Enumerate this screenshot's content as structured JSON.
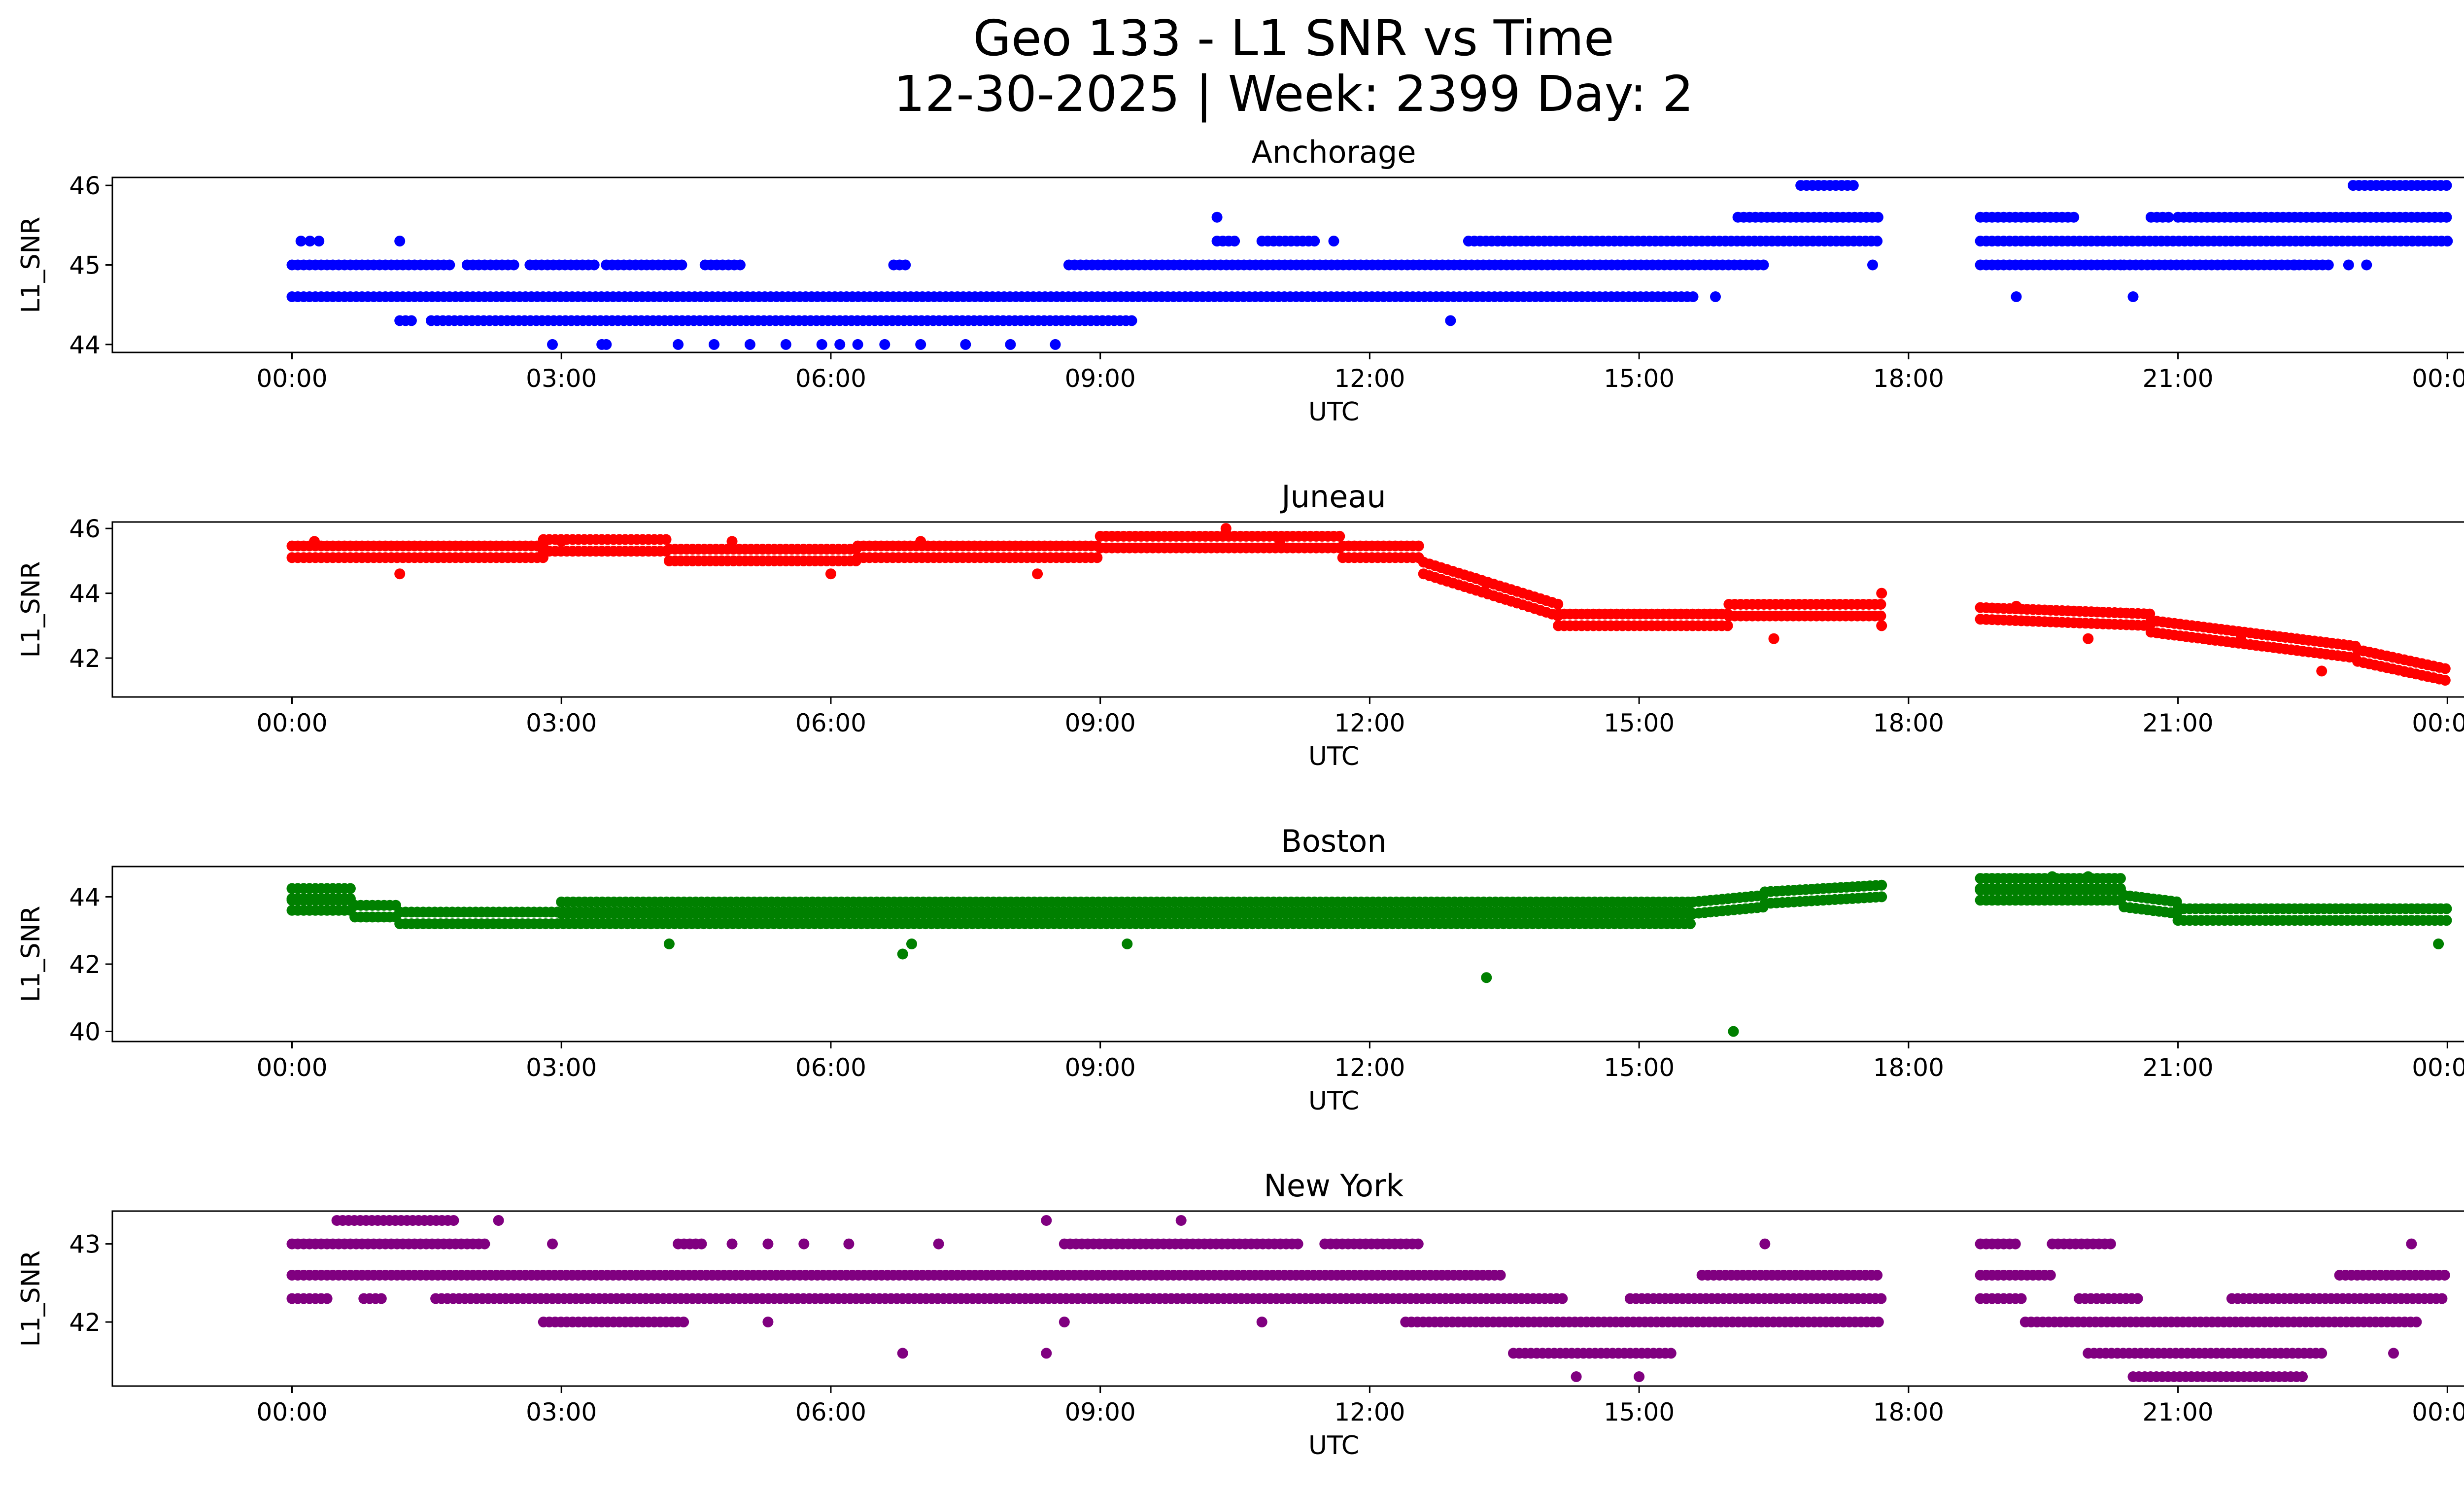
{
  "figure": {
    "title_line1": "Geo 133 - L1 SNR vs Time",
    "title_line2": "12-30-2025 | Week: 2399 Day: 2"
  },
  "chart_data": [
    {
      "type": "scatter",
      "title": "Anchorage",
      "xlabel": "UTC",
      "ylabel": "L1_SNR",
      "color": "#0000ff",
      "xlim_hours": [
        -2.0,
        25.2
      ],
      "ylim": [
        43.9,
        46.1
      ],
      "xticks": [
        "00:00",
        "03:00",
        "06:00",
        "09:00",
        "12:00",
        "15:00",
        "18:00",
        "21:00",
        "00:00"
      ],
      "yticks": [
        44,
        45,
        46
      ],
      "bands": [
        {
          "y": 44.6,
          "ranges": [
            [
              0.0,
              15.6
            ]
          ]
        },
        {
          "y": 45.0,
          "ranges": [
            [
              0.0,
              1.8
            ],
            [
              1.95,
              2.5
            ],
            [
              2.65,
              3.4
            ],
            [
              3.5,
              3.9
            ],
            [
              3.95,
              4.35
            ],
            [
              4.6,
              5.05
            ],
            [
              6.7,
              6.85
            ],
            [
              8.65,
              16.4
            ],
            [
              18.8,
              20.4
            ],
            [
              20.4,
              22.7
            ]
          ]
        },
        {
          "y": 44.3,
          "ranges": [
            [
              1.2,
              1.35
            ],
            [
              1.55,
              9.4
            ]
          ]
        },
        {
          "y": 45.3,
          "ranges": [
            [
              10.3,
              10.55
            ],
            [
              10.8,
              11.4
            ],
            [
              13.1,
              17.7
            ],
            [
              18.8,
              24.0
            ]
          ]
        },
        {
          "y": 45.6,
          "ranges": [
            [
              16.1,
              17.7
            ],
            [
              18.8,
              19.9
            ],
            [
              20.7,
              20.95
            ],
            [
              21.0,
              24.0
            ]
          ]
        },
        {
          "y": 46.0,
          "ranges": [
            [
              16.8,
              17.4
            ],
            [
              22.95,
              24.0
            ]
          ]
        }
      ],
      "points": [
        [
          0.1,
          45.3
        ],
        [
          0.2,
          45.3
        ],
        [
          0.3,
          45.3
        ],
        [
          1.2,
          45.3
        ],
        [
          2.9,
          44.0
        ],
        [
          3.45,
          44.0
        ],
        [
          3.5,
          44.0
        ],
        [
          4.3,
          44.0
        ],
        [
          4.7,
          44.0
        ],
        [
          5.1,
          44.0
        ],
        [
          5.5,
          44.0
        ],
        [
          5.9,
          44.0
        ],
        [
          6.1,
          44.0
        ],
        [
          6.3,
          44.0
        ],
        [
          6.6,
          44.0
        ],
        [
          7.0,
          44.0
        ],
        [
          7.5,
          44.0
        ],
        [
          8.0,
          44.0
        ],
        [
          8.5,
          44.0
        ],
        [
          10.3,
          45.6
        ],
        [
          11.6,
          45.3
        ],
        [
          12.9,
          44.3
        ],
        [
          15.85,
          44.6
        ],
        [
          17.6,
          45.0
        ],
        [
          19.2,
          44.6
        ],
        [
          20.5,
          44.6
        ],
        [
          22.3,
          45.0
        ],
        [
          22.9,
          45.0
        ],
        [
          23.1,
          45.0
        ]
      ]
    },
    {
      "type": "scatter",
      "title": "Juneau",
      "xlabel": "UTC",
      "ylabel": "L1_SNR",
      "color": "#ff0000",
      "xlim_hours": [
        -2.0,
        25.2
      ],
      "ylim": [
        40.8,
        46.2
      ],
      "xticks": [
        "00:00",
        "03:00",
        "06:00",
        "09:00",
        "12:00",
        "15:00",
        "18:00",
        "21:00",
        "00:00"
      ],
      "yticks": [
        42,
        44,
        46
      ],
      "segments": [
        {
          "x": [
            0.0,
            2.8
          ],
          "y": [
            45.1,
            45.1
          ]
        },
        {
          "x": [
            2.8,
            4.2
          ],
          "y": [
            45.3,
            45.3
          ]
        },
        {
          "x": [
            4.2,
            6.3
          ],
          "y": [
            45.0,
            45.0
          ]
        },
        {
          "x": [
            6.3,
            9.0
          ],
          "y": [
            45.1,
            45.1
          ]
        },
        {
          "x": [
            9.0,
            11.7
          ],
          "y": [
            45.4,
            45.4
          ]
        },
        {
          "x": [
            11.7,
            12.6
          ],
          "y": [
            45.1,
            45.1
          ]
        },
        {
          "x": [
            12.6,
            14.1
          ],
          "y": [
            44.6,
            43.3
          ]
        },
        {
          "x": [
            14.1,
            16.0
          ],
          "y": [
            43.0,
            43.0
          ]
        },
        {
          "x": [
            16.0,
            17.7
          ],
          "y": [
            43.3,
            43.3
          ]
        },
        {
          "x": [
            18.8,
            20.7
          ],
          "y": [
            43.2,
            43.0
          ]
        },
        {
          "x": [
            20.7,
            23.0
          ],
          "y": [
            42.8,
            42.0
          ]
        },
        {
          "x": [
            23.0,
            24.0
          ],
          "y": [
            41.9,
            41.3
          ]
        }
      ],
      "points": [
        [
          0.25,
          45.6
        ],
        [
          1.2,
          44.6
        ],
        [
          3.0,
          45.6
        ],
        [
          4.9,
          45.6
        ],
        [
          6.0,
          44.6
        ],
        [
          7.0,
          45.6
        ],
        [
          8.3,
          44.6
        ],
        [
          10.4,
          46.0
        ],
        [
          11.0,
          45.6
        ],
        [
          13.3,
          44.3
        ],
        [
          16.5,
          42.6
        ],
        [
          17.7,
          44.0
        ],
        [
          17.7,
          43.0
        ],
        [
          19.2,
          43.6
        ],
        [
          20.0,
          42.6
        ],
        [
          21.7,
          42.6
        ],
        [
          22.6,
          41.6
        ]
      ]
    },
    {
      "type": "scatter",
      "title": "Boston",
      "xlabel": "UTC",
      "ylabel": "L1_SNR",
      "color": "#008000",
      "xlim_hours": [
        -2.0,
        25.2
      ],
      "ylim": [
        39.7,
        44.9
      ],
      "xticks": [
        "00:00",
        "03:00",
        "06:00",
        "09:00",
        "12:00",
        "15:00",
        "18:00",
        "21:00",
        "00:00"
      ],
      "yticks": [
        40,
        42,
        44
      ],
      "segments": [
        {
          "x": [
            0.0,
            0.7
          ],
          "y": [
            43.9,
            43.9
          ]
        },
        {
          "x": [
            0.0,
            0.7
          ],
          "y": [
            43.6,
            43.6
          ]
        },
        {
          "x": [
            0.7,
            1.2
          ],
          "y": [
            43.4,
            43.4
          ]
        },
        {
          "x": [
            1.2,
            4.0
          ],
          "y": [
            43.2,
            43.2
          ]
        },
        {
          "x": [
            3.0,
            15.6
          ],
          "y": [
            43.5,
            43.5
          ]
        },
        {
          "x": [
            4.0,
            15.6
          ],
          "y": [
            43.2,
            43.2
          ]
        },
        {
          "x": [
            15.6,
            16.4
          ],
          "y": [
            43.5,
            43.7
          ]
        },
        {
          "x": [
            16.4,
            17.7
          ],
          "y": [
            43.8,
            44.0
          ]
        },
        {
          "x": [
            18.8,
            20.4
          ],
          "y": [
            44.2,
            44.2
          ]
        },
        {
          "x": [
            18.8,
            20.4
          ],
          "y": [
            43.9,
            43.9
          ]
        },
        {
          "x": [
            20.4,
            21.0
          ],
          "y": [
            43.7,
            43.5
          ]
        },
        {
          "x": [
            21.0,
            24.0
          ],
          "y": [
            43.3,
            43.3
          ]
        }
      ],
      "points": [
        [
          13.3,
          41.6
        ],
        [
          16.05,
          40.0
        ],
        [
          6.8,
          42.3
        ],
        [
          4.2,
          42.6
        ],
        [
          6.9,
          42.6
        ],
        [
          9.3,
          42.6
        ],
        [
          23.9,
          42.6
        ],
        [
          19.6,
          44.6
        ],
        [
          20.0,
          44.6
        ]
      ]
    },
    {
      "type": "scatter",
      "title": "New York",
      "xlabel": "UTC",
      "ylabel": "L1_SNR",
      "color": "#800080",
      "xlim_hours": [
        -2.0,
        25.2
      ],
      "ylim": [
        41.18,
        43.42
      ],
      "xticks": [
        "00:00",
        "03:00",
        "06:00",
        "09:00",
        "12:00",
        "15:00",
        "18:00",
        "21:00",
        "00:00"
      ],
      "yticks": [
        42,
        43
      ],
      "bands": [
        {
          "y": 42.6,
          "ranges": [
            [
              0.0,
              13.5
            ],
            [
              15.7,
              17.7
            ],
            [
              18.8,
              19.6
            ],
            [
              22.8,
              24.0
            ]
          ]
        },
        {
          "y": 42.3,
          "ranges": [
            [
              0.0,
              0.4
            ],
            [
              0.8,
              1.0
            ],
            [
              1.6,
              14.2
            ],
            [
              14.9,
              17.7
            ],
            [
              18.8,
              19.3
            ],
            [
              19.9,
              20.6
            ],
            [
              21.6,
              24.0
            ]
          ]
        },
        {
          "y": 43.0,
          "ranges": [
            [
              0.0,
              2.2
            ],
            [
              4.3,
              4.6
            ],
            [
              8.6,
              11.2
            ],
            [
              11.5,
              12.6
            ],
            [
              18.8,
              19.2
            ],
            [
              19.6,
              20.3
            ]
          ]
        },
        {
          "y": 42.0,
          "ranges": [
            [
              2.8,
              4.4
            ],
            [
              12.4,
              17.7
            ],
            [
              19.3,
              23.7
            ]
          ]
        },
        {
          "y": 41.6,
          "ranges": [
            [
              13.6,
              15.4
            ],
            [
              20.0,
              22.6
            ]
          ]
        },
        {
          "y": 41.3,
          "ranges": [
            [
              20.5,
              22.4
            ]
          ]
        },
        {
          "y": 43.3,
          "ranges": [
            [
              0.5,
              1.8
            ]
          ]
        }
      ],
      "points": [
        [
          2.3,
          43.3
        ],
        [
          2.9,
          43.0
        ],
        [
          4.9,
          43.0
        ],
        [
          5.3,
          43.0
        ],
        [
          5.7,
          43.0
        ],
        [
          6.2,
          43.0
        ],
        [
          7.2,
          43.0
        ],
        [
          8.4,
          43.3
        ],
        [
          9.9,
          43.3
        ],
        [
          6.8,
          41.6
        ],
        [
          8.4,
          41.6
        ],
        [
          5.3,
          42.0
        ],
        [
          8.6,
          42.0
        ],
        [
          10.8,
          42.0
        ],
        [
          14.3,
          41.3
        ],
        [
          15.0,
          41.3
        ],
        [
          16.4,
          43.0
        ],
        [
          23.6,
          43.0
        ],
        [
          23.4,
          41.6
        ]
      ]
    }
  ]
}
